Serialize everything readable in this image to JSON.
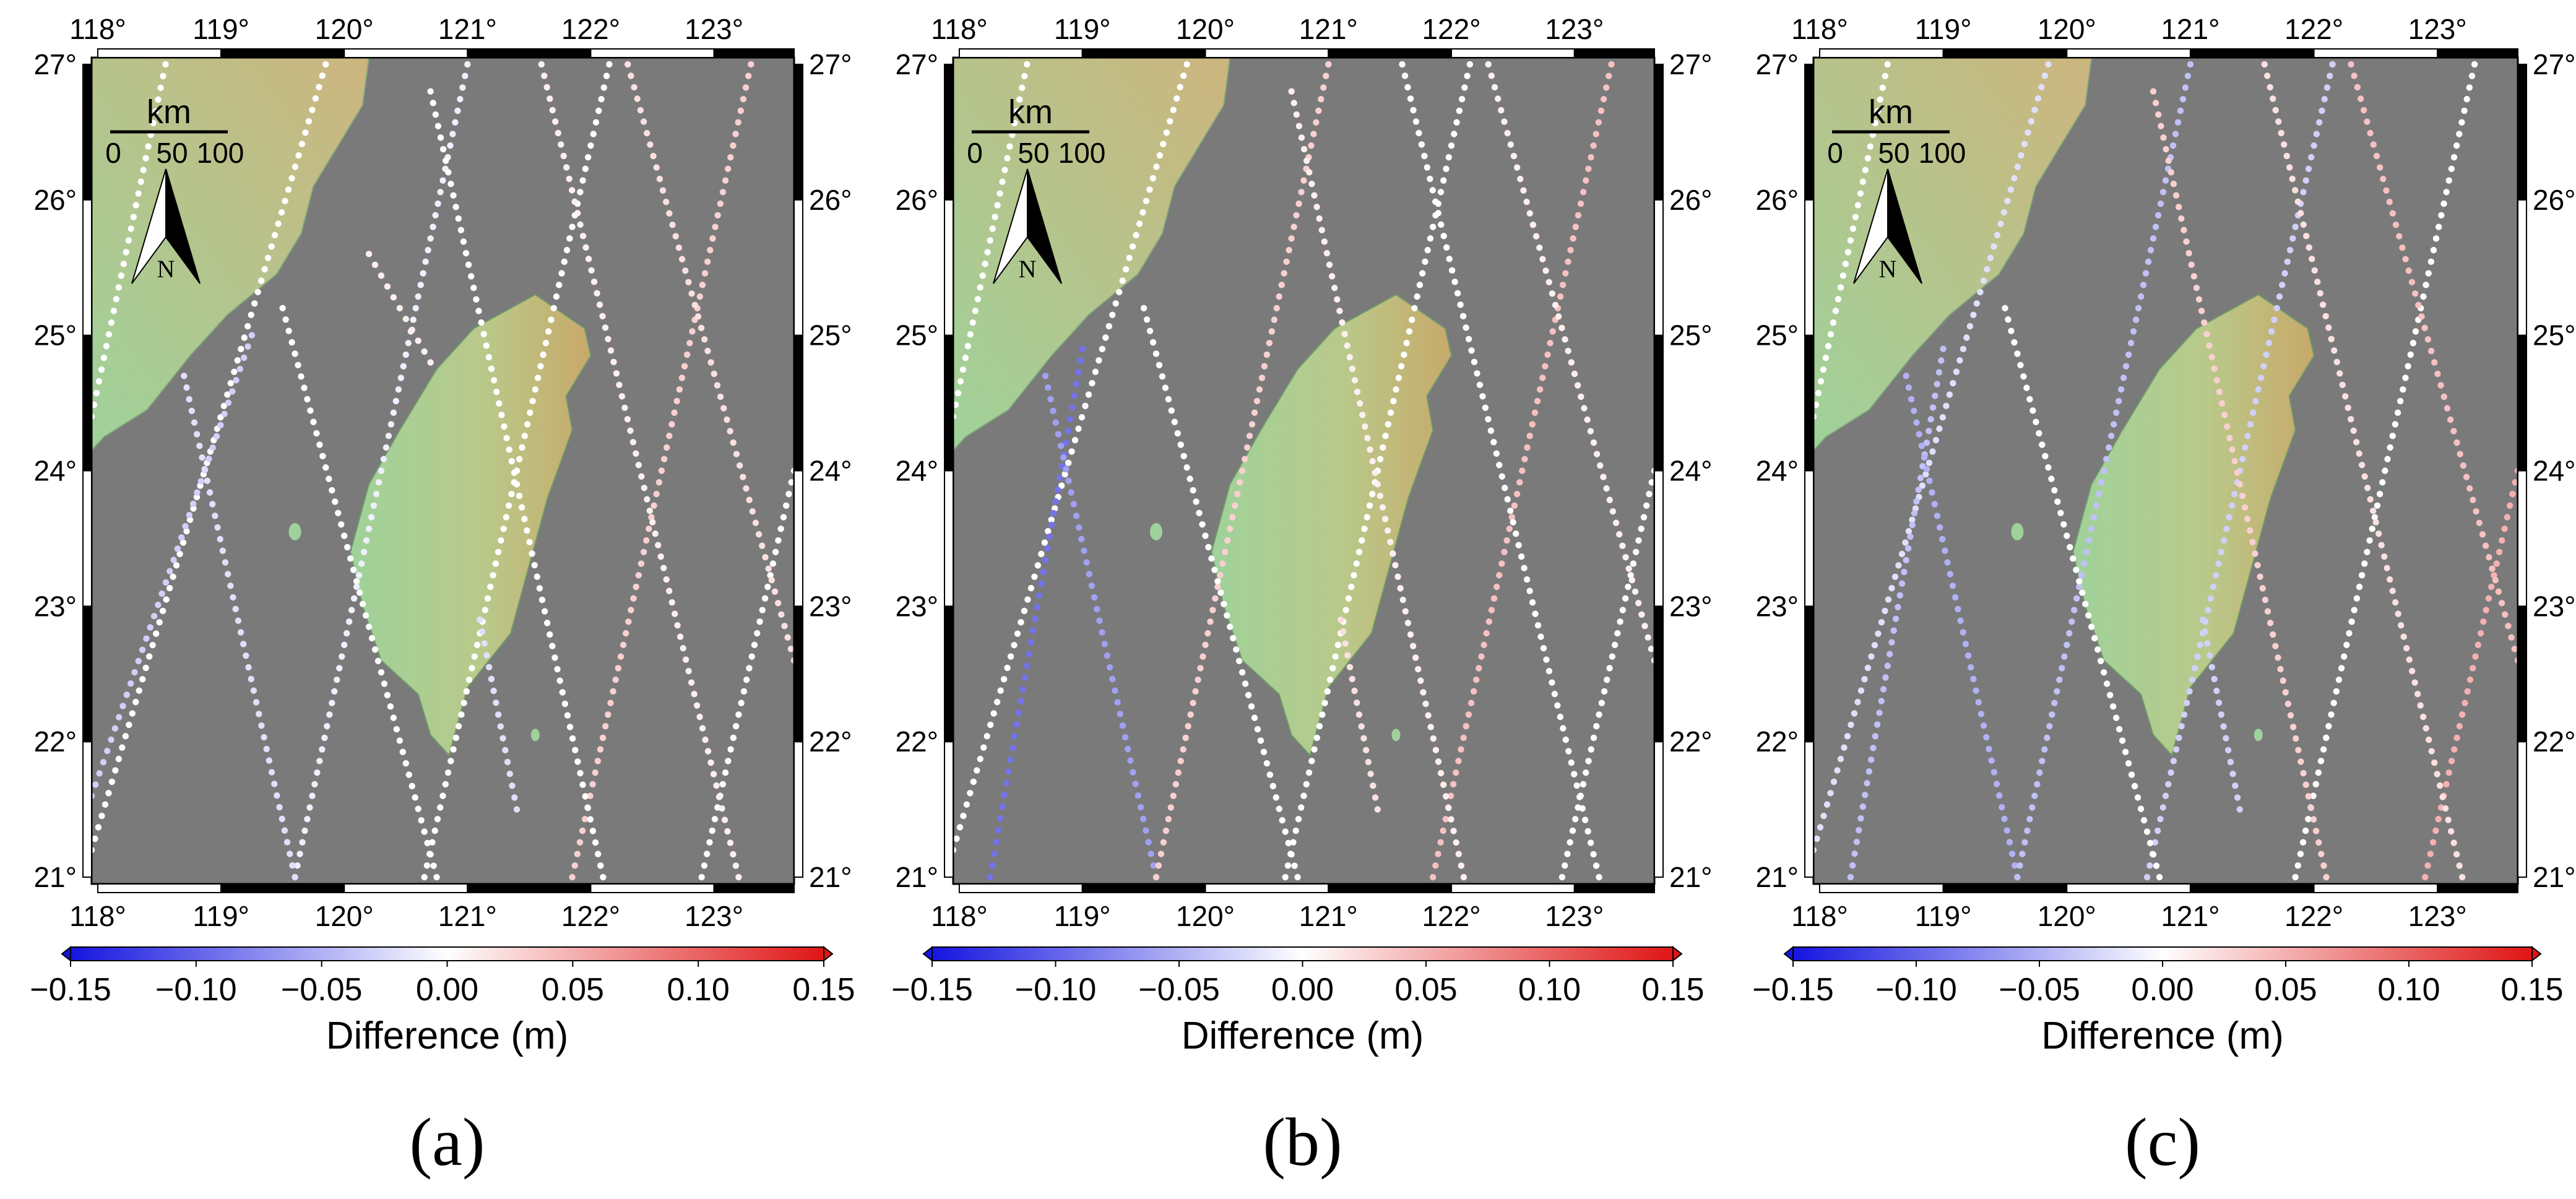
{
  "figure": {
    "lon_ticks": [
      "118°",
      "119°",
      "120°",
      "121°",
      "122°",
      "123°"
    ],
    "lat_ticks": [
      "21°",
      "22°",
      "23°",
      "24°",
      "25°",
      "26°",
      "27°"
    ],
    "lon_range": [
      117.95,
      123.65
    ],
    "lat_range": [
      20.95,
      27.05
    ],
    "colors": {
      "sea": "#7a7a7a",
      "land_low": "#9fd29a",
      "land_high": "#c8b27a",
      "negative": "#1515e0",
      "zero": "#ffffff",
      "positive": "#e01515"
    },
    "scalebar": {
      "unit": "km",
      "labels": [
        "0",
        "50",
        "100"
      ]
    },
    "north_arrow": {
      "label": "N",
      "icon": "north-arrow-icon"
    },
    "colorbar": {
      "ticks": [
        "−0.15",
        "−0.10",
        "−0.05",
        "0.00",
        "0.05",
        "0.10",
        "0.15"
      ],
      "label": "Difference (m)",
      "range": [
        -0.15,
        0.15
      ]
    }
  },
  "panels": [
    {
      "label": "(a)",
      "tracks": [
        {
          "lon0": 118.55,
          "lat0": 27.0,
          "lon1": 117.95,
          "lat1": 24.4,
          "value": 0.0
        },
        {
          "lon0": 119.85,
          "lat0": 27.0,
          "lon1": 117.95,
          "lat1": 21.2,
          "value": 0.0
        },
        {
          "lon0": 121.0,
          "lat0": 27.0,
          "lon1": 119.6,
          "lat1": 21.0,
          "value": -0.01
        },
        {
          "lon0": 122.15,
          "lat0": 27.0,
          "lon1": 120.65,
          "lat1": 21.0,
          "value": 0.0
        },
        {
          "lon0": 123.3,
          "lat0": 27.0,
          "lon1": 121.85,
          "lat1": 21.0,
          "value": 0.03
        },
        {
          "lon0": 123.65,
          "lat0": 24.0,
          "lon1": 122.9,
          "lat1": 21.0,
          "value": 0.0
        },
        {
          "lon0": 119.25,
          "lat0": 25.0,
          "lon1": 117.95,
          "lat1": 21.6,
          "value": -0.03
        },
        {
          "lon0": 118.7,
          "lat0": 24.7,
          "lon1": 119.6,
          "lat1": 21.0,
          "value": -0.02
        },
        {
          "lon0": 119.5,
          "lat0": 25.2,
          "lon1": 120.75,
          "lat1": 21.0,
          "value": 0.0
        },
        {
          "lon0": 120.2,
          "lat0": 25.6,
          "lon1": 120.7,
          "lat1": 24.8,
          "value": 0.01
        },
        {
          "lon0": 120.7,
          "lat0": 26.8,
          "lon1": 122.1,
          "lat1": 21.0,
          "value": 0.0
        },
        {
          "lon0": 121.6,
          "lat0": 27.0,
          "lon1": 123.2,
          "lat1": 21.0,
          "value": 0.01
        },
        {
          "lon0": 122.3,
          "lat0": 27.0,
          "lon1": 123.65,
          "lat1": 22.6,
          "value": 0.02
        },
        {
          "lon0": 121.1,
          "lat0": 22.9,
          "lon1": 121.4,
          "lat1": 21.5,
          "value": -0.02
        }
      ]
    },
    {
      "label": "(b)",
      "tracks": [
        {
          "lon0": 118.55,
          "lat0": 27.0,
          "lon1": 117.95,
          "lat1": 24.4,
          "value": 0.0
        },
        {
          "lon0": 119.85,
          "lat0": 27.0,
          "lon1": 117.95,
          "lat1": 21.2,
          "value": 0.0
        },
        {
          "lon0": 119.0,
          "lat0": 24.9,
          "lon1": 118.25,
          "lat1": 21.0,
          "value": -0.09
        },
        {
          "lon0": 118.7,
          "lat0": 24.7,
          "lon1": 119.6,
          "lat1": 21.0,
          "value": -0.06
        },
        {
          "lon0": 121.0,
          "lat0": 27.0,
          "lon1": 119.6,
          "lat1": 21.0,
          "value": 0.03
        },
        {
          "lon0": 122.15,
          "lat0": 27.0,
          "lon1": 120.65,
          "lat1": 21.0,
          "value": 0.0
        },
        {
          "lon0": 123.3,
          "lat0": 27.0,
          "lon1": 121.85,
          "lat1": 21.0,
          "value": 0.04
        },
        {
          "lon0": 123.65,
          "lat0": 24.0,
          "lon1": 122.9,
          "lat1": 21.0,
          "value": 0.0
        },
        {
          "lon0": 119.5,
          "lat0": 25.2,
          "lon1": 120.75,
          "lat1": 21.0,
          "value": 0.0
        },
        {
          "lon0": 120.7,
          "lat0": 26.8,
          "lon1": 122.1,
          "lat1": 21.0,
          "value": 0.01
        },
        {
          "lon0": 121.6,
          "lat0": 27.0,
          "lon1": 123.2,
          "lat1": 21.0,
          "value": 0.0
        },
        {
          "lon0": 122.3,
          "lat0": 27.0,
          "lon1": 123.65,
          "lat1": 22.6,
          "value": 0.01
        },
        {
          "lon0": 121.1,
          "lat0": 22.9,
          "lon1": 121.4,
          "lat1": 21.5,
          "value": 0.02
        }
      ]
    },
    {
      "label": "(c)",
      "tracks": [
        {
          "lon0": 118.55,
          "lat0": 27.0,
          "lon1": 117.95,
          "lat1": 24.4,
          "value": 0.0
        },
        {
          "lon0": 119.85,
          "lat0": 27.0,
          "lon1": 117.95,
          "lat1": 21.2,
          "value": -0.02
        },
        {
          "lon0": 119.0,
          "lat0": 24.9,
          "lon1": 118.25,
          "lat1": 21.0,
          "value": -0.04
        },
        {
          "lon0": 118.7,
          "lat0": 24.7,
          "lon1": 119.6,
          "lat1": 21.0,
          "value": -0.05
        },
        {
          "lon0": 121.0,
          "lat0": 27.0,
          "lon1": 119.6,
          "lat1": 21.0,
          "value": -0.04
        },
        {
          "lon0": 122.15,
          "lat0": 27.0,
          "lon1": 120.65,
          "lat1": 21.0,
          "value": -0.03
        },
        {
          "lon0": 123.3,
          "lat0": 27.0,
          "lon1": 121.85,
          "lat1": 21.0,
          "value": 0.0
        },
        {
          "lon0": 123.65,
          "lat0": 24.0,
          "lon1": 122.9,
          "lat1": 21.0,
          "value": 0.05
        },
        {
          "lon0": 119.5,
          "lat0": 25.2,
          "lon1": 120.75,
          "lat1": 21.0,
          "value": 0.0
        },
        {
          "lon0": 120.7,
          "lat0": 26.8,
          "lon1": 122.1,
          "lat1": 21.0,
          "value": 0.03
        },
        {
          "lon0": 121.6,
          "lat0": 27.0,
          "lon1": 123.2,
          "lat1": 21.0,
          "value": 0.02
        },
        {
          "lon0": 122.3,
          "lat0": 27.0,
          "lon1": 123.65,
          "lat1": 22.6,
          "value": 0.04
        },
        {
          "lon0": 121.1,
          "lat0": 22.9,
          "lon1": 121.4,
          "lat1": 21.5,
          "value": -0.03
        }
      ]
    }
  ]
}
